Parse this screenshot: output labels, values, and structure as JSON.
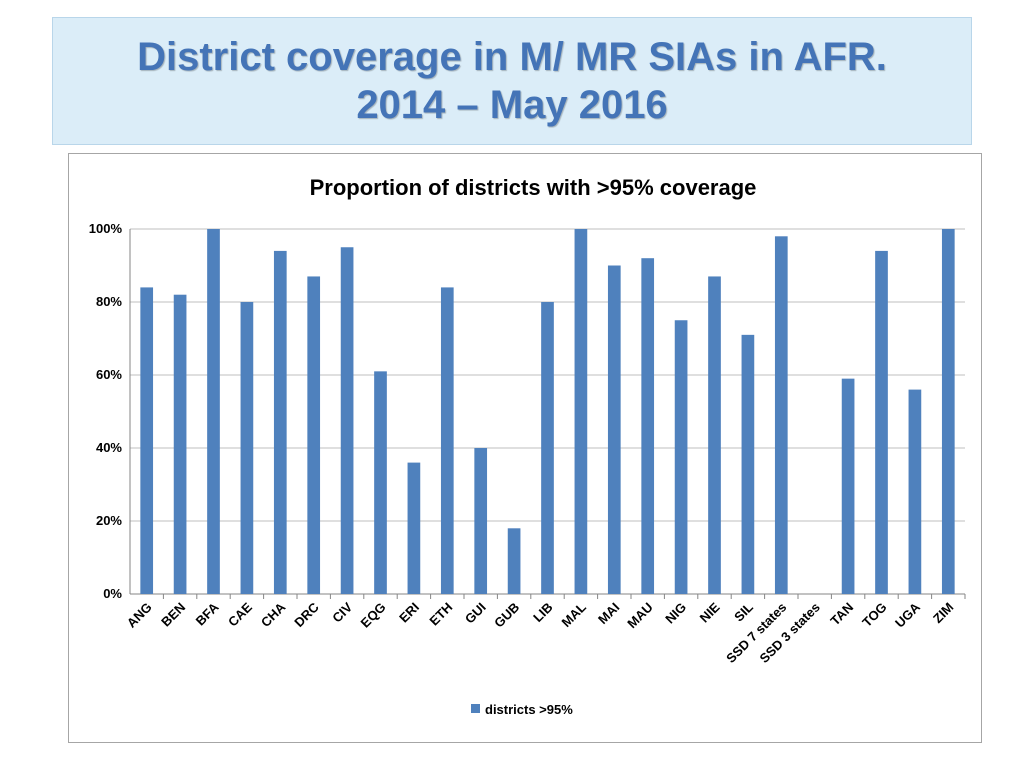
{
  "slide": {
    "title_line1": "District coverage in M/ MR SIAs in AFR.",
    "title_line2": "2014 – May 2016"
  },
  "chart_data": {
    "type": "bar",
    "title": "Proportion of districts with >95% coverage",
    "categories": [
      "ANG",
      "BEN",
      "BFA",
      "CAE",
      "CHA",
      "DRC",
      "CIV",
      "EQG",
      "ERI",
      "ETH",
      "GUI",
      "GUB",
      "LIB",
      "MAL",
      "MAI",
      "MAU",
      "NIG",
      "NIE",
      "SIL",
      "SSD 7 states",
      "SSD 3 states",
      "TAN",
      "TOG",
      "UGA",
      "ZIM"
    ],
    "series": [
      {
        "name": "districts >95%",
        "values": [
          84,
          82,
          100,
          80,
          94,
          87,
          95,
          61,
          36,
          84,
          40,
          18,
          80,
          100,
          90,
          92,
          75,
          87,
          71,
          98,
          0,
          59,
          94,
          56,
          100
        ]
      }
    ],
    "ylim": [
      0,
      100
    ],
    "yticks": [
      "0%",
      "20%",
      "40%",
      "60%",
      "80%",
      "100%"
    ],
    "grid": true,
    "legend": "bottom",
    "colors": {
      "bar": "#4f81bd"
    }
  }
}
